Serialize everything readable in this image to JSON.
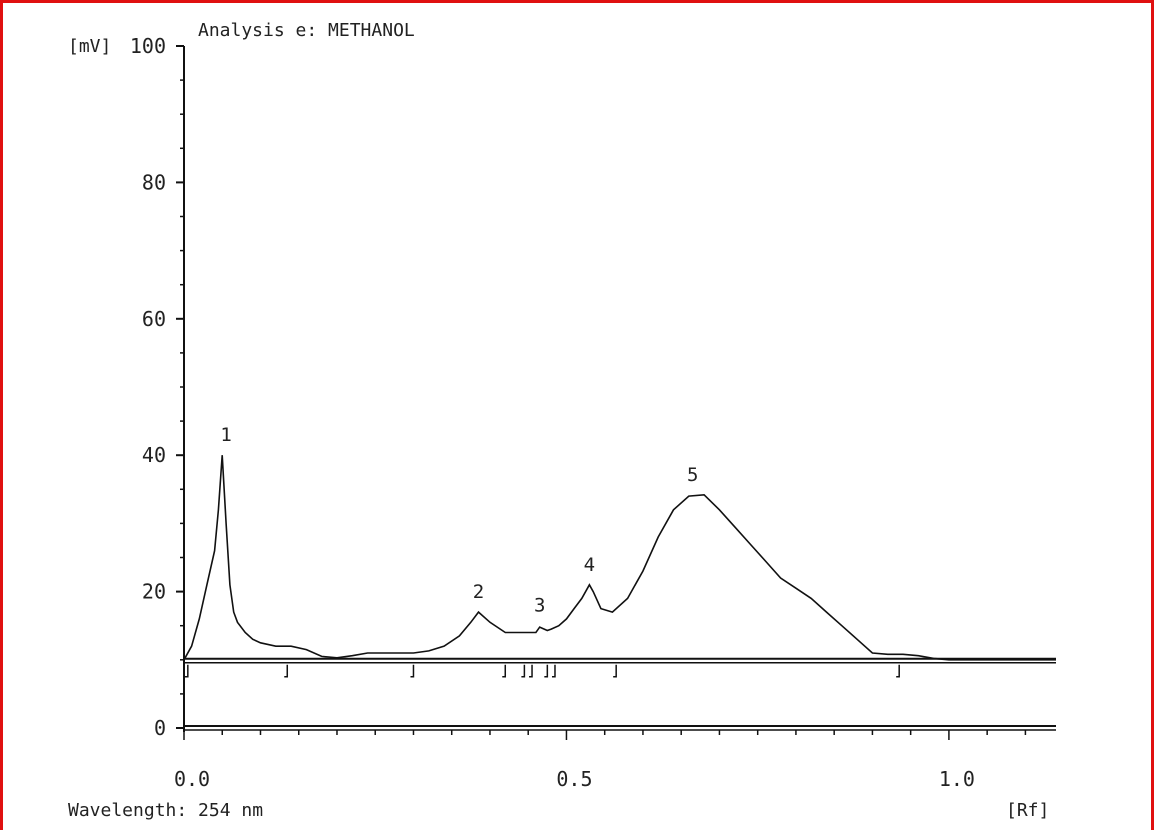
{
  "chart_data": {
    "type": "area",
    "title": "Analysis e: METHANOL",
    "ylabel": "[mV]",
    "xlabel": "[Rf]",
    "footer": "Wavelength: 254 nm",
    "xlim": [
      0.0,
      1.14
    ],
    "ylim": [
      0,
      100
    ],
    "baseline_y": 10,
    "zero_line_y": 0,
    "y_ticks": [
      0,
      20,
      40,
      60,
      80,
      100
    ],
    "y_tick_labels": [
      "0",
      "20",
      "40",
      "60",
      "80",
      "100"
    ],
    "x_ticks": [
      0.0,
      0.5,
      1.0
    ],
    "x_tick_labels": [
      "0.0",
      "0.5",
      "1.0"
    ],
    "grid": false,
    "colors": {
      "fill": "#141414",
      "line": "#111111",
      "frame": "#e01010"
    },
    "series": [
      {
        "x": [
          0.0,
          0.01,
          0.02,
          0.03,
          0.04,
          0.045,
          0.05,
          0.055,
          0.06,
          0.065,
          0.07,
          0.08,
          0.09,
          0.1,
          0.12,
          0.14,
          0.16,
          0.18,
          0.2,
          0.22,
          0.24,
          0.26,
          0.28,
          0.3,
          0.32,
          0.34,
          0.36,
          0.375,
          0.385,
          0.4,
          0.42,
          0.44,
          0.46,
          0.465,
          0.475,
          0.48,
          0.49,
          0.5,
          0.51,
          0.52,
          0.53,
          0.535,
          0.545,
          0.56,
          0.58,
          0.6,
          0.62,
          0.64,
          0.66,
          0.68,
          0.7,
          0.72,
          0.74,
          0.76,
          0.78,
          0.8,
          0.82,
          0.84,
          0.86,
          0.88,
          0.9,
          0.92,
          0.94,
          0.96,
          0.98,
          1.0,
          1.14
        ],
        "y": [
          10,
          12,
          16,
          21,
          26,
          32,
          40,
          30,
          21,
          17,
          15.5,
          14,
          13,
          12.5,
          12,
          12,
          11.5,
          10.5,
          10.3,
          10.6,
          11,
          11,
          11,
          11,
          11.3,
          12,
          13.5,
          15.5,
          17,
          15.5,
          14,
          14,
          14,
          14.8,
          14.3,
          14.5,
          15,
          16,
          17.5,
          19,
          21,
          20,
          17.5,
          17,
          19,
          23,
          28,
          32,
          34,
          34.2,
          32,
          29.5,
          27,
          24.5,
          22,
          20.5,
          19,
          17,
          15,
          13,
          11,
          10.8,
          10.8,
          10.6,
          10.2,
          10,
          10
        ]
      }
    ],
    "shaded_ranges": [
      [
        0.0,
        0.135
      ],
      [
        0.3,
        0.42
      ],
      [
        0.445,
        0.475
      ],
      [
        0.485,
        0.96
      ]
    ],
    "peaks": [
      {
        "label": "1",
        "x": 0.055,
        "y": 40
      },
      {
        "label": "2",
        "x": 0.385,
        "y": 17
      },
      {
        "label": "3",
        "x": 0.465,
        "y": 15
      },
      {
        "label": "4",
        "x": 0.53,
        "y": 21
      },
      {
        "label": "5",
        "x": 0.665,
        "y": 34.2
      }
    ],
    "integration_marks": [
      0.005,
      0.135,
      0.3,
      0.42,
      0.445,
      0.455,
      0.475,
      0.485,
      0.565,
      0.935
    ]
  }
}
